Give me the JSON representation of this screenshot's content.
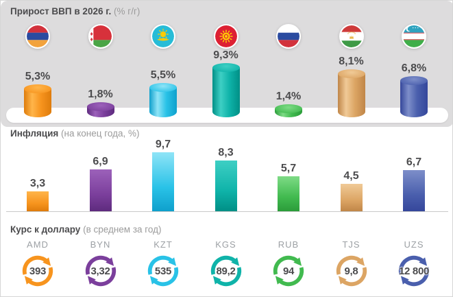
{
  "sections": {
    "gdp": {
      "title": "Прирост ВВП в 2026 г.",
      "subtitle": "(% г/г)"
    },
    "inflation": {
      "title": "Инфляция",
      "subtitle": "(на конец года, %)"
    },
    "fx": {
      "title": "Курс к доллару",
      "subtitle": "(в среднем за год)"
    }
  },
  "colors": {
    "panel_bg": "#DDDCDD",
    "title_text": "#4B4B4D",
    "subtitle_text": "#9B9B9B",
    "value_text": "#4B4B4D",
    "currency_code_text": "#9CA0A4",
    "baseline": "#C9C9C9",
    "platform": "#FFFFFF"
  },
  "countries": [
    {
      "id": "armenia",
      "flag_icon": "armenia-flag-icon",
      "currency_code": "AMD",
      "gdp_label": "5,3%",
      "gdp_value": 5.3,
      "inflation_label": "3,3",
      "inflation_value": 3.3,
      "fx_label": "393",
      "fx_value": 393,
      "color": "#F7941E",
      "color_light": "#FFB54A",
      "color_dark": "#DE7C0C"
    },
    {
      "id": "belarus",
      "flag_icon": "belarus-flag-icon",
      "currency_code": "BYN",
      "gdp_label": "1,8%",
      "gdp_value": 1.8,
      "inflation_label": "6,9",
      "inflation_value": 6.9,
      "fx_label": "3,32",
      "fx_value": 3.32,
      "color": "#7B3F9C",
      "color_light": "#9C61BA",
      "color_dark": "#5E2B7E"
    },
    {
      "id": "kazakhstan",
      "flag_icon": "kazakhstan-flag-icon",
      "currency_code": "KZT",
      "gdp_label": "5,5%",
      "gdp_value": 5.5,
      "inflation_label": "9,7",
      "inflation_value": 9.7,
      "fx_label": "535",
      "fx_value": 535,
      "color": "#29C2E7",
      "color_light": "#8FE4F7",
      "color_dark": "#0FA0CC"
    },
    {
      "id": "kyrgyzstan",
      "flag_icon": "kyrgyzstan-flag-icon",
      "currency_code": "KGS",
      "gdp_label": "9,3%",
      "gdp_value": 9.3,
      "inflation_label": "8,3",
      "inflation_value": 8.3,
      "fx_label": "89,2",
      "fx_value": 89.2,
      "color": "#0FB3A9",
      "color_light": "#3ECFC4",
      "color_dark": "#008F86"
    },
    {
      "id": "russia",
      "flag_icon": "russia-flag-icon",
      "currency_code": "RUB",
      "gdp_label": "1,4%",
      "gdp_value": 1.4,
      "inflation_label": "5,7",
      "inflation_value": 5.7,
      "fx_label": "94",
      "fx_value": 94,
      "color": "#41BA4F",
      "color_light": "#7EDB86",
      "color_dark": "#2B9C3A"
    },
    {
      "id": "tajikistan",
      "flag_icon": "tajikistan-flag-icon",
      "currency_code": "TJS",
      "gdp_label": "8,1%",
      "gdp_value": 8.1,
      "inflation_label": "4,5",
      "inflation_value": 4.5,
      "fx_label": "9,8",
      "fx_value": 9.8,
      "color": "#DCA564",
      "color_light": "#F0CA97",
      "color_dark": "#C08648"
    },
    {
      "id": "uzbekistan",
      "flag_icon": "uzbekistan-flag-icon",
      "currency_code": "UZS",
      "gdp_label": "6,8%",
      "gdp_value": 6.8,
      "inflation_label": "6,7",
      "inflation_value": 6.7,
      "fx_label": "12 800",
      "fx_value": 12800,
      "color": "#4A5FAD",
      "color_light": "#7D8EC9",
      "color_dark": "#35479B"
    }
  ],
  "chart_data": [
    {
      "type": "bar",
      "title": "Прирост ВВП в 2026 г. (% г/г)",
      "categories": [
        "Армения",
        "Беларусь",
        "Казахстан",
        "Кыргызстан",
        "Россия",
        "Таджикистан",
        "Узбекистан"
      ],
      "currency_categories": [
        "AMD",
        "BYN",
        "KZT",
        "KGS",
        "RUB",
        "TJS",
        "UZS"
      ],
      "values": [
        5.3,
        1.8,
        5.5,
        9.3,
        1.4,
        8.1,
        6.8
      ],
      "value_labels": [
        "5,3%",
        "1,8%",
        "5,5%",
        "9,3%",
        "1,4%",
        "8,1%",
        "6,8%"
      ],
      "xlabel": "",
      "ylabel": "% г/г",
      "ylim": [
        0,
        10
      ],
      "grid": false,
      "legend": false,
      "style": "3d-cylinder"
    },
    {
      "type": "bar",
      "title": "Инфляция (на конец года, %)",
      "categories": [
        "Армения",
        "Беларусь",
        "Казахстан",
        "Кыргызстан",
        "Россия",
        "Таджикистан",
        "Узбекистан"
      ],
      "currency_categories": [
        "AMD",
        "BYN",
        "KZT",
        "KGS",
        "RUB",
        "TJS",
        "UZS"
      ],
      "values": [
        3.3,
        6.9,
        9.7,
        8.3,
        5.7,
        4.5,
        6.7
      ],
      "value_labels": [
        "3,3",
        "6,9",
        "9,7",
        "8,3",
        "5,7",
        "4,5",
        "6,7"
      ],
      "xlabel": "",
      "ylabel": "%",
      "ylim": [
        0,
        10
      ],
      "grid": false,
      "legend": false,
      "style": "flat-bar"
    },
    {
      "type": "table",
      "title": "Курс к доллару (в среднем за год)",
      "categories": [
        "AMD",
        "BYN",
        "KZT",
        "KGS",
        "RUB",
        "TJS",
        "UZS"
      ],
      "values": [
        393,
        3.32,
        535,
        89.2,
        94,
        9.8,
        12800
      ],
      "value_labels": [
        "393",
        "3,32",
        "535",
        "89,2",
        "94",
        "9,8",
        "12 800"
      ]
    }
  ]
}
